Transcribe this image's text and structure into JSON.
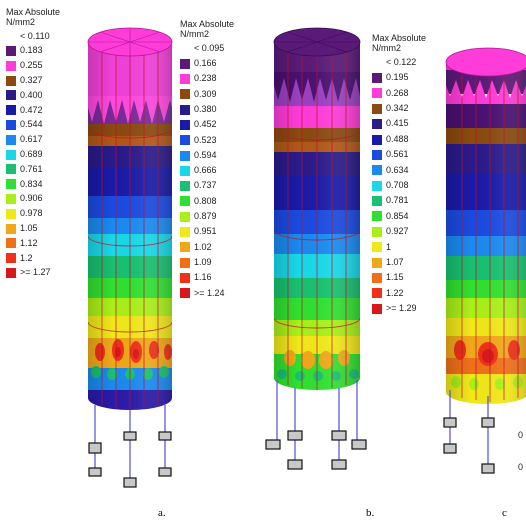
{
  "panels": [
    {
      "caption": "a.",
      "legend": {
        "title": "Max Absolute",
        "unit": "N/mm2",
        "entries": [
          {
            "label": "< 0.110",
            "color": ""
          },
          {
            "label": "0.183",
            "color": "#5a1a78"
          },
          {
            "label": "0.255",
            "color": "#ff3bd8"
          },
          {
            "label": "0.327",
            "color": "#8a4a10"
          },
          {
            "label": "0.400",
            "color": "#2a1a8a"
          },
          {
            "label": "0.472",
            "color": "#1a1aa8"
          },
          {
            "label": "0.544",
            "color": "#1a4ae0"
          },
          {
            "label": "0.617",
            "color": "#1a8af0"
          },
          {
            "label": "0.689",
            "color": "#18d8e8"
          },
          {
            "label": "0.761",
            "color": "#18c070"
          },
          {
            "label": "0.834",
            "color": "#30e030"
          },
          {
            "label": "0.906",
            "color": "#a8f018"
          },
          {
            "label": "0.978",
            "color": "#f0e818"
          },
          {
            "label": "1.05",
            "color": "#f0a818"
          },
          {
            "label": "1.12",
            "color": "#f07018"
          },
          {
            "label": "1.2",
            "color": "#f03018"
          },
          {
            "label": ">= 1.27",
            "color": "#d81818"
          }
        ]
      }
    },
    {
      "caption": "b.",
      "legend": {
        "title": "Max Absolute",
        "unit": "N/mm2",
        "entries": [
          {
            "label": "< 0.095",
            "color": ""
          },
          {
            "label": "0.166",
            "color": "#5a1a78"
          },
          {
            "label": "0.238",
            "color": "#ff3bd8"
          },
          {
            "label": "0.309",
            "color": "#8a4a10"
          },
          {
            "label": "0.380",
            "color": "#2a1a8a"
          },
          {
            "label": "0.452",
            "color": "#1a1aa8"
          },
          {
            "label": "0.523",
            "color": "#1a4ae0"
          },
          {
            "label": "0.594",
            "color": "#1a8af0"
          },
          {
            "label": "0.666",
            "color": "#18d8e8"
          },
          {
            "label": "0.737",
            "color": "#18c070"
          },
          {
            "label": "0.808",
            "color": "#30e030"
          },
          {
            "label": "0.879",
            "color": "#a8f018"
          },
          {
            "label": "0.951",
            "color": "#f0e818"
          },
          {
            "label": "1.02",
            "color": "#f0a818"
          },
          {
            "label": "1.09",
            "color": "#f07018"
          },
          {
            "label": "1.16",
            "color": "#f03018"
          },
          {
            "label": ">= 1.24",
            "color": "#d81818"
          }
        ]
      }
    },
    {
      "caption": "c",
      "legend": {
        "title": "Max Absolute",
        "unit": "N/mm2",
        "entries": [
          {
            "label": "< 0.122",
            "color": ""
          },
          {
            "label": "0.195",
            "color": "#5a1a78"
          },
          {
            "label": "0.268",
            "color": "#ff3bd8"
          },
          {
            "label": "0.342",
            "color": "#8a4a10"
          },
          {
            "label": "0.415",
            "color": "#2a1a8a"
          },
          {
            "label": "0.488",
            "color": "#1a1aa8"
          },
          {
            "label": "0.561",
            "color": "#1a4ae0"
          },
          {
            "label": "0.634",
            "color": "#1a8af0"
          },
          {
            "label": "0.708",
            "color": "#18d8e8"
          },
          {
            "label": "0.781",
            "color": "#18c070"
          },
          {
            "label": "0.854",
            "color": "#30e030"
          },
          {
            "label": "0.927",
            "color": "#a8f018"
          },
          {
            "label": "1",
            "color": "#f0e818"
          },
          {
            "label": "1.07",
            "color": "#f0a818"
          },
          {
            "label": "1.15",
            "color": "#f07018"
          },
          {
            "label": "1.22",
            "color": "#f03018"
          },
          {
            "label": ">= 1.29",
            "color": "#d81818"
          }
        ]
      }
    }
  ]
}
